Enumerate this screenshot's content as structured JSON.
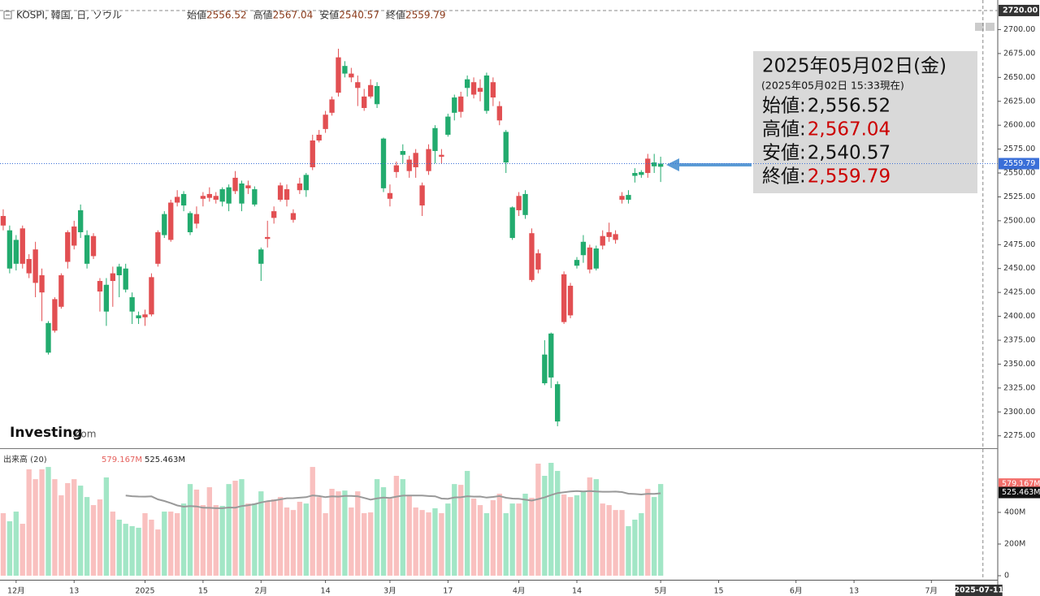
{
  "chart_data": {
    "type": "candlestick",
    "header": {
      "title": "KOSPI, 韓国, 日, ソウル",
      "fields": [
        "始値",
        "高値",
        "安値",
        "終値"
      ]
    },
    "watermark": [
      "Investing",
      ".com"
    ],
    "up_color": "#22ab6e",
    "down_color": "#e24f52",
    "vol_up_color": "#a2e6c6",
    "vol_down_color": "#f9c0bf",
    "xlim": [
      -0.5,
      154.3
    ],
    "xticks": [
      {
        "value": 2,
        "label": "12月"
      },
      {
        "value": 11,
        "label": "13"
      },
      {
        "value": 22,
        "label": "2025"
      },
      {
        "value": 31,
        "label": "15"
      },
      {
        "value": 40,
        "label": "2月"
      },
      {
        "value": 50,
        "label": "14"
      },
      {
        "value": 60,
        "label": "3月"
      },
      {
        "value": 69,
        "label": "17"
      },
      {
        "value": 80,
        "label": "4月"
      },
      {
        "value": 89,
        "label": "14"
      },
      {
        "value": 102,
        "label": "5月"
      },
      {
        "value": 111,
        "label": "15"
      },
      {
        "value": 123,
        "label": "6月"
      },
      {
        "value": 132,
        "label": "13"
      },
      {
        "value": 144,
        "label": "7月"
      }
    ],
    "crosshair": {
      "x": {
        "value": 152,
        "label": "2025-07-11"
      },
      "y": {
        "value": 2720,
        "label": "2720.00"
      }
    },
    "ylim": [
      2262,
      2731
    ],
    "yticks": [
      {
        "value": 2275,
        "label": "2275.00"
      },
      {
        "value": 2300,
        "label": "2300.00"
      },
      {
        "value": 2325,
        "label": "2325.00"
      },
      {
        "value": 2350,
        "label": "2350.00"
      },
      {
        "value": 2375,
        "label": "2375.00"
      },
      {
        "value": 2400,
        "label": "2400.00"
      },
      {
        "value": 2425,
        "label": "2425.00"
      },
      {
        "value": 2450,
        "label": "2450.00"
      },
      {
        "value": 2475,
        "label": "2475.00"
      },
      {
        "value": 2500,
        "label": "2500.00"
      },
      {
        "value": 2525,
        "label": "2525.00"
      },
      {
        "value": 2550,
        "label": "2550.00"
      },
      {
        "value": 2575,
        "label": "2575.00"
      },
      {
        "value": 2600,
        "label": "2600.00"
      },
      {
        "value": 2625,
        "label": "2625.00"
      },
      {
        "value": 2650,
        "label": "2650.00"
      },
      {
        "value": 2675,
        "label": "2675.00"
      },
      {
        "value": 2700,
        "label": "2700.00"
      }
    ],
    "ohlc": [
      [
        2505,
        2512,
        2490,
        2495
      ],
      [
        2450,
        2495,
        2445,
        2490
      ],
      [
        2455,
        2485,
        2448,
        2480
      ],
      [
        2492,
        2495,
        2450,
        2455
      ],
      [
        2460,
        2465,
        2440,
        2445
      ],
      [
        2470,
        2478,
        2420,
        2435
      ],
      [
        2443,
        2450,
        2395,
        2425
      ],
      [
        2362,
        2395,
        2360,
        2393
      ],
      [
        2418,
        2420,
        2383,
        2385
      ],
      [
        2443,
        2445,
        2408,
        2410
      ],
      [
        2488,
        2490,
        2450,
        2457
      ],
      [
        2494,
        2500,
        2470,
        2474
      ],
      [
        2488,
        2517,
        2482,
        2511
      ],
      [
        2455,
        2490,
        2450,
        2485
      ],
      [
        2484,
        2487,
        2460,
        2463
      ],
      [
        2437,
        2440,
        2405,
        2426
      ],
      [
        2405,
        2440,
        2390,
        2433
      ],
      [
        2445,
        2452,
        2410,
        2437
      ],
      [
        2443,
        2455,
        2420,
        2452
      ],
      [
        2428,
        2455,
        2425,
        2450
      ],
      [
        2405,
        2425,
        2392,
        2420
      ],
      [
        2398,
        2405,
        2392,
        2401
      ],
      [
        2402,
        2407,
        2390,
        2399
      ],
      [
        2441,
        2445,
        2400,
        2402
      ],
      [
        2488,
        2490,
        2452,
        2455
      ],
      [
        2485,
        2510,
        2482,
        2507
      ],
      [
        2519,
        2522,
        2478,
        2480
      ],
      [
        2525,
        2532,
        2515,
        2519
      ],
      [
        2516,
        2531,
        2510,
        2528
      ],
      [
        2488,
        2510,
        2485,
        2508
      ],
      [
        2507,
        2515,
        2492,
        2497
      ],
      [
        2526,
        2530,
        2515,
        2523
      ],
      [
        2528,
        2535,
        2520,
        2524
      ],
      [
        2526,
        2530,
        2518,
        2522
      ],
      [
        2520,
        2535,
        2515,
        2533
      ],
      [
        2518,
        2538,
        2510,
        2535
      ],
      [
        2545,
        2552,
        2528,
        2531
      ],
      [
        2518,
        2542,
        2510,
        2539
      ],
      [
        2537,
        2542,
        2528,
        2534
      ],
      [
        2517,
        2536,
        2515,
        2533
      ],
      [
        2455,
        2472,
        2437,
        2470
      ],
      [
        2483,
        2500,
        2472,
        2481
      ],
      [
        2510,
        2515,
        2497,
        2503
      ],
      [
        2537,
        2540,
        2520,
        2522
      ],
      [
        2533,
        2538,
        2515,
        2522
      ],
      [
        2508,
        2512,
        2498,
        2501
      ],
      [
        2539,
        2545,
        2528,
        2532
      ],
      [
        2532,
        2550,
        2525,
        2548
      ],
      [
        2584,
        2590,
        2553,
        2556
      ],
      [
        2590,
        2595,
        2582,
        2584
      ],
      [
        2611,
        2615,
        2592,
        2596
      ],
      [
        2627,
        2630,
        2610,
        2613
      ],
      [
        2671,
        2680,
        2630,
        2634
      ],
      [
        2654,
        2667,
        2650,
        2662
      ],
      [
        2654,
        2660,
        2645,
        2650
      ],
      [
        2645,
        2652,
        2620,
        2639
      ],
      [
        2630,
        2638,
        2615,
        2618
      ],
      [
        2642,
        2648,
        2628,
        2630
      ],
      [
        2622,
        2645,
        2618,
        2641
      ],
      [
        2534,
        2587,
        2530,
        2586
      ],
      [
        2529,
        2538,
        2515,
        2523
      ],
      [
        2558,
        2562,
        2545,
        2551
      ],
      [
        2569,
        2580,
        2560,
        2573
      ],
      [
        2564,
        2568,
        2545,
        2552
      ],
      [
        2571,
        2575,
        2545,
        2556
      ],
      [
        2537,
        2540,
        2505,
        2516
      ],
      [
        2575,
        2580,
        2548,
        2552
      ],
      [
        2573,
        2600,
        2560,
        2597
      ],
      [
        2569,
        2575,
        2560,
        2567
      ],
      [
        2590,
        2612,
        2588,
        2609
      ],
      [
        2613,
        2632,
        2605,
        2629
      ],
      [
        2630,
        2635,
        2608,
        2614
      ],
      [
        2639,
        2652,
        2630,
        2648
      ],
      [
        2645,
        2650,
        2628,
        2632
      ],
      [
        2639,
        2648,
        2625,
        2635
      ],
      [
        2615,
        2655,
        2612,
        2652
      ],
      [
        2645,
        2650,
        2620,
        2629
      ],
      [
        2620,
        2625,
        2600,
        2605
      ],
      [
        2561,
        2595,
        2550,
        2593
      ],
      [
        2482,
        2515,
        2480,
        2514
      ],
      [
        2526,
        2530,
        2505,
        2511
      ],
      [
        2506,
        2532,
        2502,
        2528
      ],
      [
        2487,
        2492,
        2436,
        2438
      ],
      [
        2466,
        2470,
        2445,
        2449
      ],
      [
        2330,
        2375,
        2328,
        2360
      ],
      [
        2336,
        2383,
        2325,
        2382
      ],
      [
        2290,
        2332,
        2285,
        2329
      ],
      [
        2444,
        2447,
        2392,
        2394
      ],
      [
        2432,
        2435,
        2398,
        2401
      ],
      [
        2453,
        2462,
        2450,
        2459
      ],
      [
        2464,
        2485,
        2456,
        2478
      ],
      [
        2472,
        2475,
        2445,
        2449
      ],
      [
        2450,
        2474,
        2448,
        2471
      ],
      [
        2484,
        2490,
        2470,
        2474
      ],
      [
        2488,
        2498,
        2478,
        2483
      ],
      [
        2486,
        2490,
        2476,
        2480
      ],
      [
        2526,
        2530,
        2518,
        2522
      ],
      [
        2522,
        2532,
        2518,
        2527
      ],
      [
        2547,
        2555,
        2540,
        2550
      ],
      [
        2548,
        2553,
        2545,
        2551
      ],
      [
        2565,
        2570,
        2545,
        2550
      ],
      [
        2557,
        2570,
        2550,
        2561
      ],
      [
        2556.52,
        2567.04,
        2540.57,
        2559.79
      ]
    ],
    "volume": {
      "name": "出来高 (20)",
      "ma_period": 20,
      "color": "#999999",
      "ylim": [
        0,
        790
      ],
      "yticks": [
        0,
        {
          "value": 200,
          "label": "200M"
        },
        {
          "value": 400,
          "label": "400M"
        }
      ],
      "values": [
        395,
        344,
        405,
        328,
        672,
        610,
        672,
        687,
        610,
        508,
        585,
        610,
        569,
        497,
        446,
        482,
        621,
        405,
        354,
        328,
        313,
        303,
        395,
        354,
        292,
        405,
        405,
        395,
        456,
        579,
        544,
        446,
        559,
        446,
        441,
        579,
        600,
        610,
        456,
        456,
        533,
        467,
        482,
        497,
        431,
        415,
        467,
        456,
        687,
        497,
        395,
        549,
        533,
        538,
        431,
        533,
        395,
        400,
        610,
        559,
        487,
        631,
        610,
        508,
        431,
        415,
        400,
        426,
        395,
        456,
        579,
        574,
        662,
        487,
        446,
        395,
        477,
        518,
        395,
        456,
        456,
        518,
        492,
        708,
        631,
        713,
        662,
        513,
        497,
        508,
        533,
        621,
        610,
        456,
        446,
        415,
        415,
        313,
        354,
        395,
        549,
        497,
        579.167
      ],
      "last_label": "579.167M",
      "ma_value": 525.463,
      "ma_label": "525.463M"
    },
    "info_box": {
      "date": "2025年05月02日(金)",
      "time": "(2025年05月02日 15:33現在)",
      "separator": ":",
      "labels": [
        "始値",
        "高値",
        "安値",
        "終値"
      ],
      "values": [
        "2,556.52",
        "2,567.04",
        "2,540.57",
        "2,559.79"
      ],
      "value_colors": [
        "#111111",
        "#cc0000",
        "#111111",
        "#cc0000"
      ]
    }
  }
}
